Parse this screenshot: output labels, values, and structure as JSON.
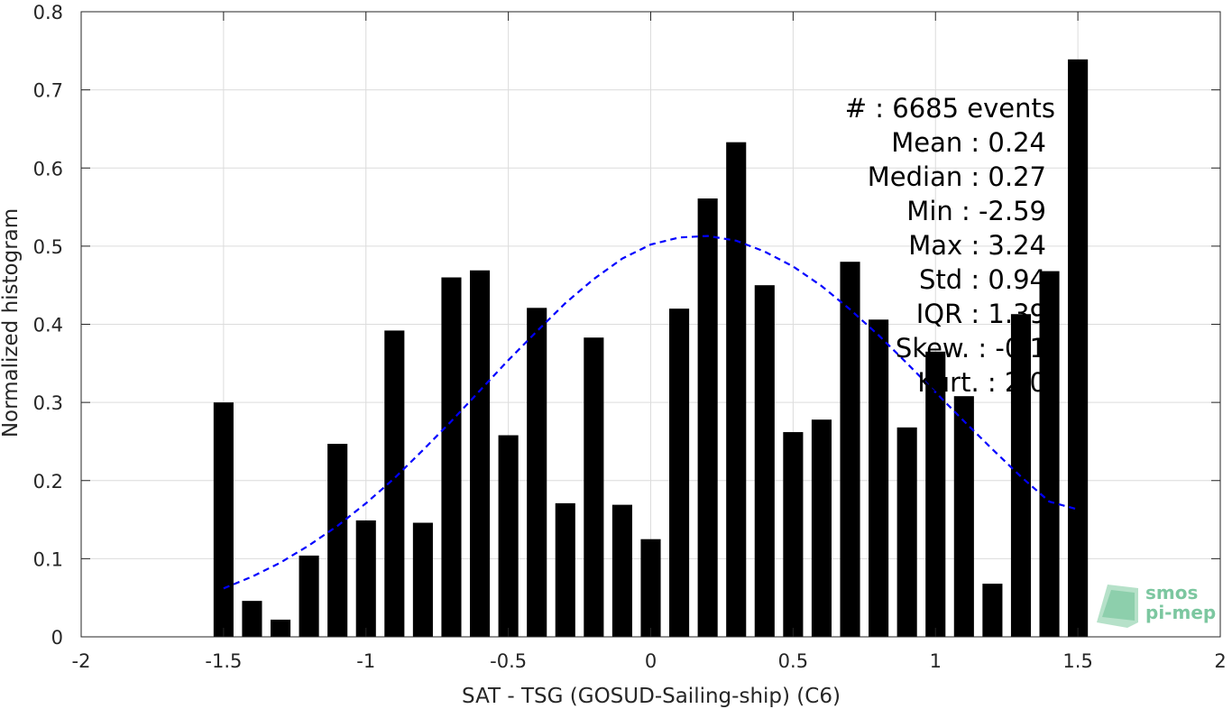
{
  "chart_data": {
    "type": "bar",
    "xlabel": "SAT - TSG (GOSUD-Sailing-ship) (C6)",
    "ylabel": "Normalized histogram",
    "xlim": [
      -2,
      2
    ],
    "ylim": [
      0,
      0.8
    ],
    "xticks": [
      "-2",
      "-1.5",
      "-1",
      "-0.5",
      "0",
      "0.5",
      "1",
      "1.5",
      "2"
    ],
    "yticks": [
      "0",
      "0.1",
      "0.2",
      "0.3",
      "0.4",
      "0.5",
      "0.6",
      "0.7",
      "0.8"
    ],
    "grid": true,
    "bar_color": "#000000",
    "bars": [
      {
        "x": -1.5,
        "y": 0.3
      },
      {
        "x": -1.4,
        "y": 0.046
      },
      {
        "x": -1.3,
        "y": 0.022
      },
      {
        "x": -1.2,
        "y": 0.104
      },
      {
        "x": -1.1,
        "y": 0.247
      },
      {
        "x": -1.0,
        "y": 0.149
      },
      {
        "x": -0.9,
        "y": 0.392
      },
      {
        "x": -0.8,
        "y": 0.146
      },
      {
        "x": -0.7,
        "y": 0.46
      },
      {
        "x": -0.6,
        "y": 0.469
      },
      {
        "x": -0.5,
        "y": 0.258
      },
      {
        "x": -0.4,
        "y": 0.421
      },
      {
        "x": -0.3,
        "y": 0.171
      },
      {
        "x": -0.2,
        "y": 0.383
      },
      {
        "x": -0.1,
        "y": 0.169
      },
      {
        "x": 0.0,
        "y": 0.125
      },
      {
        "x": 0.1,
        "y": 0.42
      },
      {
        "x": 0.2,
        "y": 0.561
      },
      {
        "x": 0.3,
        "y": 0.633
      },
      {
        "x": 0.4,
        "y": 0.45
      },
      {
        "x": 0.5,
        "y": 0.262
      },
      {
        "x": 0.6,
        "y": 0.278
      },
      {
        "x": 0.7,
        "y": 0.48
      },
      {
        "x": 0.8,
        "y": 0.406
      },
      {
        "x": 0.9,
        "y": 0.268
      },
      {
        "x": 1.0,
        "y": 0.365
      },
      {
        "x": 1.1,
        "y": 0.308
      },
      {
        "x": 1.2,
        "y": 0.068
      },
      {
        "x": 1.3,
        "y": 0.413
      },
      {
        "x": 1.4,
        "y": 0.468
      },
      {
        "x": 1.5,
        "y": 0.739
      }
    ],
    "fit_curve": {
      "style": "dashed",
      "color": "#0000ff",
      "points": [
        [
          -1.5,
          0.062
        ],
        [
          -1.4,
          0.077
        ],
        [
          -1.3,
          0.095
        ],
        [
          -1.2,
          0.117
        ],
        [
          -1.1,
          0.142
        ],
        [
          -1.0,
          0.171
        ],
        [
          -0.9,
          0.203
        ],
        [
          -0.8,
          0.239
        ],
        [
          -0.7,
          0.276
        ],
        [
          -0.6,
          0.315
        ],
        [
          -0.5,
          0.354
        ],
        [
          -0.4,
          0.391
        ],
        [
          -0.3,
          0.427
        ],
        [
          -0.2,
          0.458
        ],
        [
          -0.1,
          0.484
        ],
        [
          0.0,
          0.502
        ],
        [
          0.1,
          0.511
        ],
        [
          0.2,
          0.513
        ],
        [
          0.3,
          0.507
        ],
        [
          0.4,
          0.493
        ],
        [
          0.5,
          0.474
        ],
        [
          0.6,
          0.449
        ],
        [
          0.7,
          0.419
        ],
        [
          0.8,
          0.386
        ],
        [
          0.9,
          0.35
        ],
        [
          1.0,
          0.313
        ],
        [
          1.1,
          0.276
        ],
        [
          1.2,
          0.24
        ],
        [
          1.3,
          0.205
        ],
        [
          1.4,
          0.173
        ],
        [
          1.5,
          0.163
        ]
      ]
    }
  },
  "stats": [
    "#  : 6685 events",
    "Mean : 0.24",
    "Median : 0.27",
    "Min : -2.59",
    "Max : 3.24",
    "Std : 0.94",
    "IQR : 1.39",
    "Skew. : -0.1",
    "Kurt. : 2.0"
  ],
  "logo": {
    "line1": "smos",
    "line2": "pi-mep",
    "color": "#7cc7a0"
  }
}
